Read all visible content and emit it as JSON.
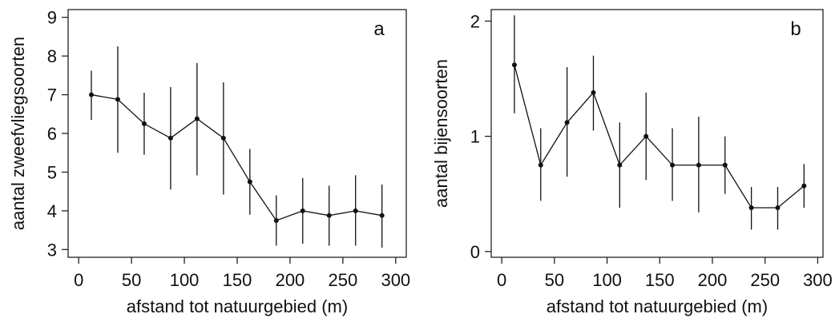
{
  "chart_data": [
    {
      "type": "line",
      "panel_label": "a",
      "xlabel": "afstand tot natuurgebied (m)",
      "ylabel": "aantal zweefvliegsoorten",
      "xlim": [
        -10,
        310
      ],
      "ylim": [
        2.8,
        9.2
      ],
      "xticks": [
        0,
        50,
        100,
        150,
        200,
        250,
        300
      ],
      "yticks": [
        3,
        4,
        5,
        6,
        7,
        8,
        9
      ],
      "grid": false,
      "x": [
        12,
        37,
        62,
        87,
        112,
        137,
        162,
        187,
        212,
        237,
        262,
        287
      ],
      "y": [
        7.0,
        6.88,
        6.25,
        5.88,
        6.38,
        5.88,
        4.75,
        3.75,
        4.0,
        3.88,
        4.0,
        3.88
      ],
      "lower": [
        6.35,
        5.5,
        5.45,
        4.55,
        4.92,
        4.42,
        3.9,
        3.1,
        3.15,
        3.1,
        3.1,
        3.05
      ],
      "upper": [
        7.62,
        8.25,
        7.05,
        7.2,
        7.82,
        7.32,
        5.6,
        4.4,
        4.85,
        4.65,
        4.92,
        4.68
      ]
    },
    {
      "type": "line",
      "panel_label": "b",
      "xlabel": "afstand tot natuurgebied (m)",
      "ylabel": "aantal bijensoorten",
      "xlim": [
        -10,
        305
      ],
      "ylim": [
        -0.05,
        2.1
      ],
      "xticks": [
        0,
        50,
        100,
        150,
        200,
        250,
        300
      ],
      "yticks": [
        0,
        1,
        2
      ],
      "grid": false,
      "x": [
        12,
        37,
        62,
        87,
        112,
        137,
        162,
        187,
        212,
        237,
        262,
        287
      ],
      "y": [
        1.62,
        0.75,
        1.12,
        1.38,
        0.75,
        1.0,
        0.75,
        0.75,
        0.75,
        0.38,
        0.38,
        0.57
      ],
      "lower": [
        1.2,
        0.44,
        0.65,
        1.05,
        0.38,
        0.62,
        0.44,
        0.34,
        0.5,
        0.19,
        0.19,
        0.38
      ],
      "upper": [
        2.05,
        1.07,
        1.6,
        1.7,
        1.12,
        1.38,
        1.07,
        1.17,
        1.0,
        0.56,
        0.56,
        0.76
      ]
    }
  ]
}
